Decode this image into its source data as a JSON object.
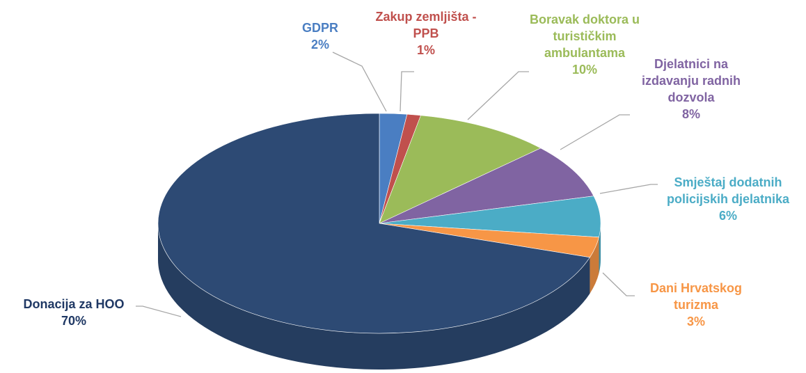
{
  "chart_data": {
    "type": "pie",
    "categories": [
      "GDPR",
      "Zakup zemljišta - PPB",
      "Boravak doktora u turističkim ambulantama",
      "Djelatnici na izdavanju radnih dozvola",
      "Smještaj dodatnih policijskih djelatnika",
      "Dani Hrvatskog turizma",
      "Donacija za HOO"
    ],
    "values": [
      2,
      1,
      10,
      8,
      6,
      3,
      70
    ],
    "value_labels": [
      "2%",
      "1%",
      "10%",
      "8%",
      "6%",
      "3%",
      "70%"
    ],
    "colors": [
      "#4a7ec2",
      "#c0504d",
      "#9bbb59",
      "#8064a2",
      "#4bacc6",
      "#f79646",
      "#2d4a74"
    ]
  }
}
